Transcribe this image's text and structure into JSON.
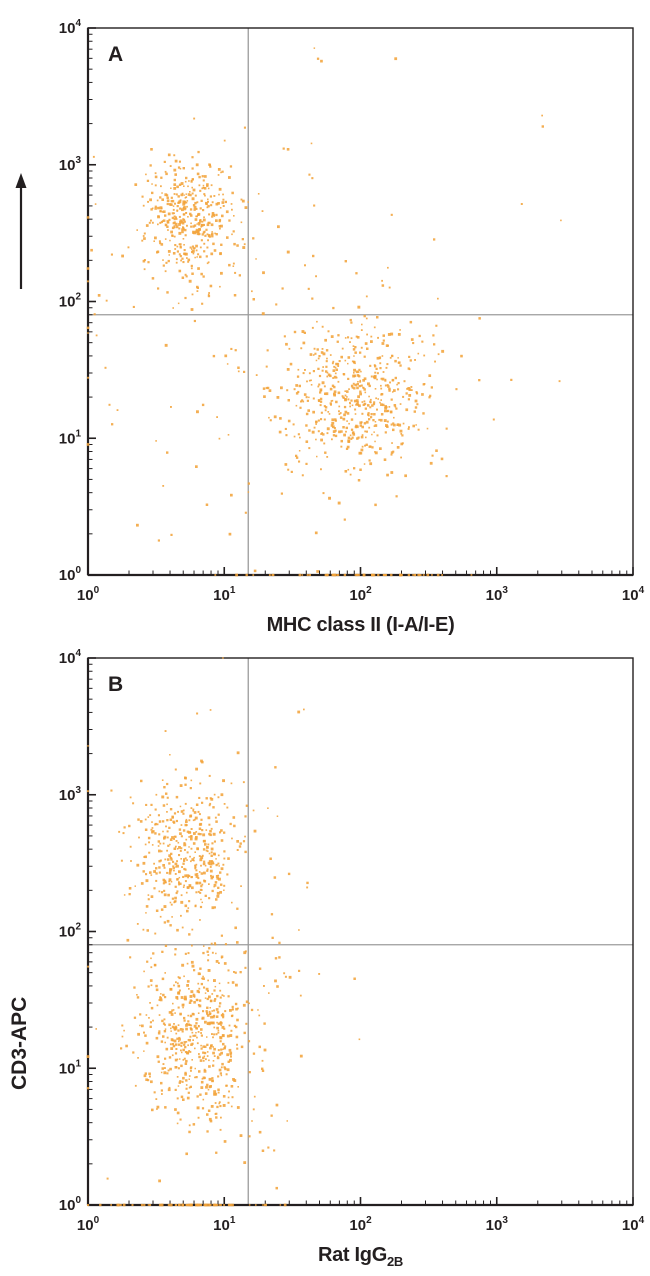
{
  "figure": {
    "background": "#ffffff",
    "colors": {
      "points": "#F2A43B",
      "gate_lines": "#9B9B9B",
      "axes": "#231F20"
    },
    "y_axis": {
      "label": "CD3-APC",
      "arrow_icon": "up-arrow"
    }
  },
  "chart_data": [
    {
      "type": "scatter",
      "panel": "A",
      "xlabel": "MHC class II (I-A/I-E)",
      "xlabel_sub": "",
      "ylabel": "CD3-APC",
      "xscale": "log",
      "yscale": "log",
      "xlim": [
        1,
        10000
      ],
      "ylim": [
        1,
        10000
      ],
      "x_tick_exponents": [
        0,
        1,
        2,
        3,
        4
      ],
      "y_tick_exponents": [
        0,
        1,
        2,
        3,
        4
      ],
      "grid": false,
      "legend": "none",
      "quadrant_gate": {
        "x": 15,
        "y": 80
      },
      "seed": 1337,
      "clusters": [
        {
          "name": "CD3+ MHC-class-II- population",
          "center_x": 5.5,
          "center_y": 400,
          "sigma_log_x": 0.17,
          "sigma_log_y": 0.23,
          "count": 430
        },
        {
          "name": "CD3- MHC-class-II+ population",
          "center_x": 95,
          "center_y": 20,
          "sigma_log_x": 0.27,
          "sigma_log_y": 0.27,
          "count": 540
        },
        {
          "name": "scattered background events",
          "center_x": 20,
          "center_y": 50,
          "sigma_log_x": 0.85,
          "sigma_log_y": 0.85,
          "count": 140
        },
        {
          "name": "axis-floor events",
          "center_x": 90,
          "center_y": 1,
          "sigma_log_x": 0.33,
          "sigma_log_y": 0,
          "count": 55
        }
      ]
    },
    {
      "type": "scatter",
      "panel": "B",
      "xlabel": "Rat IgG",
      "xlabel_sub": "2B",
      "ylabel": "CD3-APC",
      "xscale": "log",
      "yscale": "log",
      "xlim": [
        1,
        10000
      ],
      "ylim": [
        1,
        10000
      ],
      "x_tick_exponents": [
        0,
        1,
        2,
        3,
        4
      ],
      "y_tick_exponents": [
        0,
        1,
        2,
        3,
        4
      ],
      "grid": false,
      "legend": "none",
      "quadrant_gate": {
        "x": 15,
        "y": 80
      },
      "seed": 7071,
      "clusters": [
        {
          "name": "CD3+ isotype-negative population",
          "center_x": 5.2,
          "center_y": 380,
          "sigma_log_x": 0.18,
          "sigma_log_y": 0.24,
          "count": 420
        },
        {
          "name": "CD3- isotype-negative population",
          "center_x": 6.5,
          "center_y": 17,
          "sigma_log_x": 0.21,
          "sigma_log_y": 0.3,
          "count": 540
        },
        {
          "name": "scattered background events",
          "center_x": 8,
          "center_y": 60,
          "sigma_log_x": 0.5,
          "sigma_log_y": 0.95,
          "count": 120
        },
        {
          "name": "axis-floor events",
          "center_x": 6,
          "center_y": 1,
          "sigma_log_x": 0.3,
          "sigma_log_y": 0,
          "count": 60
        }
      ]
    }
  ]
}
